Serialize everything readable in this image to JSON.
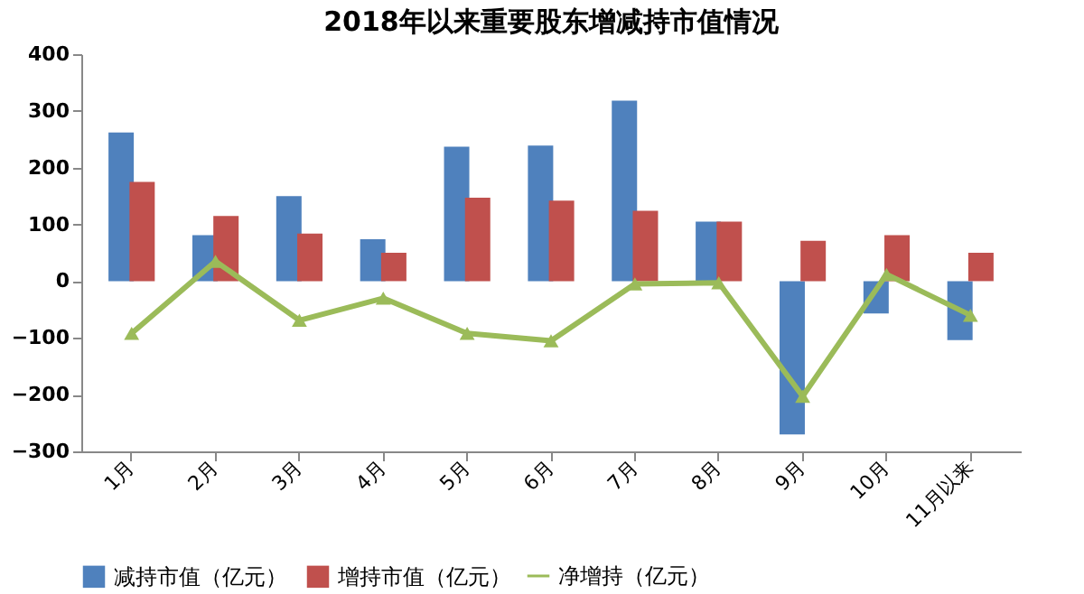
{
  "chart_data": {
    "type": "bar",
    "title": "2018年以来重要股东增减持市值情况",
    "categories": [
      "1月",
      "2月",
      "3月",
      "4月",
      "5月",
      "6月",
      "7月",
      "8月",
      "9月",
      "10月",
      "11月以来"
    ],
    "series": [
      {
        "name": "减持市值（亿元）",
        "color": "#4f81bd",
        "values": [
          262,
          81,
          150,
          74,
          237,
          239,
          318,
          105,
          -270,
          -57,
          -104
        ]
      },
      {
        "name": "增持市值（亿元）",
        "color": "#c0504d",
        "values": [
          175,
          115,
          84,
          50,
          147,
          142,
          124,
          105,
          71,
          81,
          50
        ]
      },
      {
        "name": "净增持（亿元）",
        "type": "line",
        "color": "#9bbb59",
        "marker": "triangle",
        "values": [
          -92,
          35,
          -69,
          -30,
          -92,
          -105,
          -5,
          -3,
          -203,
          12,
          -60
        ]
      }
    ],
    "ylim": [
      -300,
      400
    ],
    "yticks": [
      -300,
      -200,
      -100,
      0,
      100,
      200,
      300,
      400
    ],
    "grid": false,
    "legend": "bottom"
  }
}
